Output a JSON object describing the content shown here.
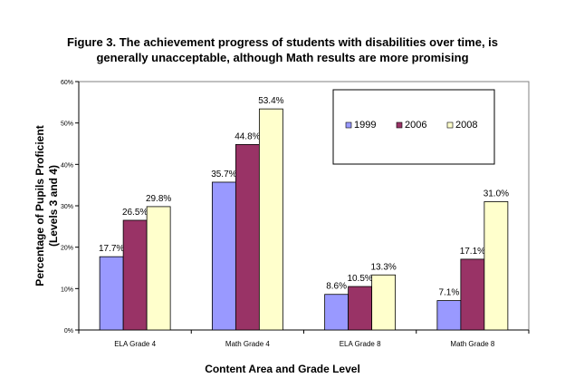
{
  "chart_data": {
    "type": "bar",
    "title_line1": "Figure 3.  The achievement progress of students with disabilities over time, is",
    "title_line2": "generally unacceptable, although Math results are more promising",
    "xlabel": "Content Area and Grade Level",
    "ylabel_line1": "Percentage of Pupils Proficient",
    "ylabel_line2": "(Levels 3 and 4)",
    "categories": [
      "ELA Grade 4",
      "Math Grade 4",
      "ELA Grade 8",
      "Math Grade 8"
    ],
    "series": [
      {
        "name": "1999",
        "color": "#9999ff",
        "values": [
          17.7,
          35.7,
          8.6,
          7.1
        ],
        "labels": [
          "17.7%",
          "35.7%",
          "8.6%",
          "7.1%"
        ]
      },
      {
        "name": "2006",
        "color": "#993366",
        "values": [
          26.5,
          44.8,
          10.5,
          17.1
        ],
        "labels": [
          "26.5%",
          "44.8%",
          "10.5%",
          "17.1%"
        ]
      },
      {
        "name": "2008",
        "color": "#ffffcc",
        "values": [
          29.8,
          53.4,
          13.3,
          31.0
        ],
        "labels": [
          "29.8%",
          "53.4%",
          "13.3%",
          "31.0%"
        ]
      }
    ],
    "ylim": [
      0,
      60
    ],
    "yticks": [
      0,
      10,
      20,
      30,
      40,
      50,
      60
    ],
    "ytick_labels": [
      "0%",
      "10%",
      "20%",
      "30%",
      "40%",
      "50%",
      "60%"
    ],
    "legend_position": "top-right",
    "grid": false
  }
}
